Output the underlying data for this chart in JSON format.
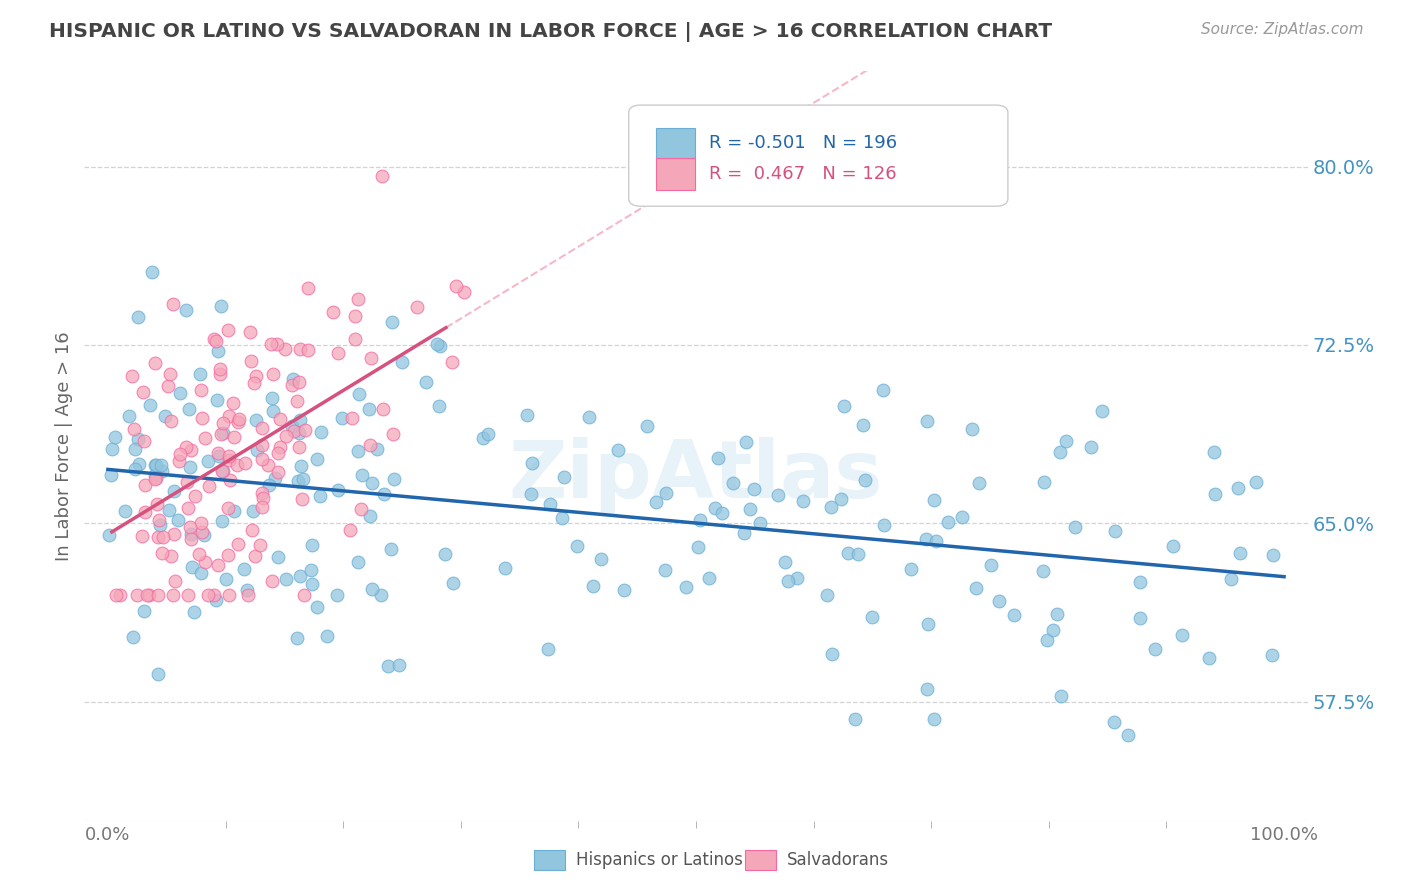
{
  "title": "HISPANIC OR LATINO VS SALVADORAN IN LABOR FORCE | AGE > 16 CORRELATION CHART",
  "source": "Source: ZipAtlas.com",
  "ylabel": "In Labor Force | Age > 16",
  "legend_labels": [
    "Hispanics or Latinos",
    "Salvadorans"
  ],
  "r_values": [
    -0.501,
    0.467
  ],
  "n_values": [
    196,
    126
  ],
  "blue_color": "#92c5de",
  "pink_color": "#f4a7b9",
  "blue_edge_color": "#6baed6",
  "pink_edge_color": "#f768a1",
  "blue_line_color": "#2166ac",
  "pink_line_color": "#d6517d",
  "dashed_line_color": "#f4a7b9",
  "legend_text_blue": "#2166ac",
  "legend_text_pink": "#d6517d",
  "ytick_color": "#4393c3",
  "xlim": [
    -0.02,
    1.02
  ],
  "ylim": [
    0.525,
    0.84
  ],
  "yticks": [
    0.575,
    0.65,
    0.725,
    0.8
  ],
  "ytick_labels": [
    "57.5%",
    "65.0%",
    "72.5%",
    "80.0%"
  ],
  "xtick_labels": [
    "0.0%",
    "100.0%"
  ],
  "grid_color": "#c8c8c8",
  "background_color": "#ffffff",
  "watermark": "ZipAtlas",
  "title_color": "#444444",
  "source_color": "#999999"
}
